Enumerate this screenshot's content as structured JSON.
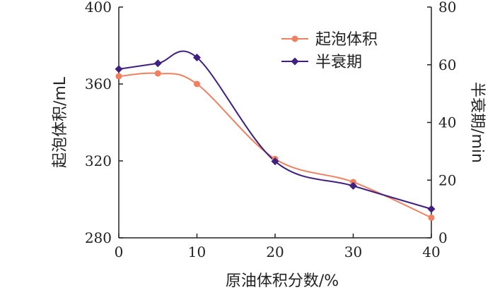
{
  "chart_data": {
    "type": "line",
    "x": [
      0,
      5,
      10,
      20,
      30,
      40
    ],
    "series": [
      {
        "name": "起泡体积",
        "axis": "left",
        "marker": "circle",
        "color": "#f08060",
        "values": [
          364,
          365.5,
          360,
          321,
          309,
          290.5
        ]
      },
      {
        "name": "半衰期",
        "axis": "right",
        "marker": "diamond",
        "color": "#3f1f7f",
        "values": [
          58.5,
          60.5,
          62.5,
          26.5,
          18,
          10
        ]
      }
    ],
    "xlabel": "原油体积分数/%",
    "ylabel_left": "起泡体积/mL",
    "ylabel_right": "半衰期/min",
    "xlim": [
      0,
      40
    ],
    "ylim_left": [
      280,
      400
    ],
    "ylim_right": [
      0,
      80
    ],
    "xticks": [
      "0",
      "10",
      "20",
      "30",
      "40"
    ],
    "yticks_left": [
      "280",
      "320",
      "360",
      "400"
    ],
    "yticks_right": [
      "0",
      "20",
      "40",
      "60",
      "80"
    ],
    "grid": false,
    "legend_position": "top-right"
  }
}
